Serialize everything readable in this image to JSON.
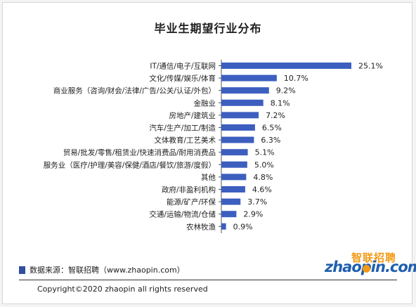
{
  "chart_data": {
    "type": "bar",
    "orientation": "horizontal",
    "title": "毕业生期望行业分布",
    "categories": [
      "IT/通信/电子/互联网",
      "文化/传媒/娱乐/体育",
      "商业服务（咨询/财会/法律/广告/公关/认证/外包）",
      "金融业",
      "房地产/建筑业",
      "汽车/生产/加工/制造",
      "文体教育/工艺美术",
      "贸易/批发/零售/租赁业/快速消费品/耐用消费品",
      "服务业（医疗/护理/美容/保健/酒店/餐饮/旅游/度假）",
      "其他",
      "政府/非盈利机构",
      "能源/矿产/环保",
      "交通/运输/物流/仓储",
      "农林牧渔"
    ],
    "values": [
      25.1,
      10.7,
      9.2,
      8.1,
      7.2,
      6.5,
      6.3,
      5.1,
      5.0,
      4.8,
      4.6,
      3.7,
      2.9,
      0.9
    ],
    "value_labels": [
      "25.1%",
      "10.7%",
      "9.2%",
      "8.1%",
      "7.2%",
      "6.5%",
      "6.3%",
      "5.1%",
      "5.0%",
      "4.8%",
      "4.6%",
      "3.7%",
      "2.9%",
      "0.9%"
    ],
    "xlim": [
      0,
      25.1
    ],
    "grid": false,
    "bar_color": "#3c5fbf"
  },
  "footer": {
    "source_label": "数据来源：智联招聘（www.zhaopin.com）",
    "copyright": "Copyright©2020 zhaopin all rights reserved"
  },
  "logo": {
    "text_cn": "智联招聘",
    "text_en": "zhaopin.com"
  },
  "colors": {
    "source_marker": "#2f4f9f",
    "logo_orange": "#f39a16",
    "logo_blue": "#1f5fb0"
  }
}
